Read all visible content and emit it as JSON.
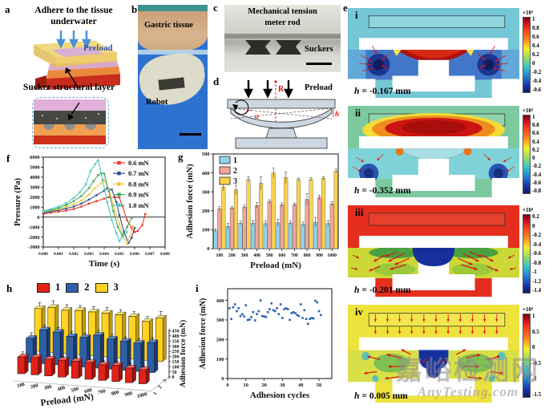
{
  "watermark": {
    "line1": "嘉峪检测网",
    "line2": "AnyTesting.com"
  },
  "panels": {
    "a": {
      "label": "a",
      "title": "Adhere to the tissue underwater",
      "preload": "Preload",
      "sucker": "Sucker structural layer"
    },
    "b": {
      "label": "b",
      "tissue": "Gastric tissue",
      "robot": "Robot"
    },
    "c": {
      "label": "c",
      "title1": "Mechanical tension",
      "title2": "meter rod",
      "suckers": "Suckers"
    },
    "d": {
      "label": "d",
      "preload": "Preload",
      "r": "R",
      "alpha": "α",
      "h": "h"
    },
    "e": {
      "label": "e",
      "subpanels": [
        {
          "id": "i",
          "h_symbol": "h",
          "h_value": "= -0.167 mm",
          "scale": "×10³",
          "ticks": [
            "1",
            "0.8",
            "0.6",
            "0.4",
            "0.2",
            "0",
            "-0.2",
            "-0.4",
            "-0.6"
          ],
          "bg": "#74c7d6"
        },
        {
          "id": "ii",
          "h_symbol": "h",
          "h_value": "= -0.352 mm",
          "scale": "×10³",
          "ticks": [
            "1",
            "0.8",
            "0.6",
            "0.4",
            "0.2",
            "0",
            "-0.2",
            "-0.4",
            "-0.6",
            "-0.8"
          ],
          "bg": "#7cc99f"
        },
        {
          "id": "iii",
          "h_symbol": "h",
          "h_value": "= -0.201 mm",
          "scale": "×10⁴",
          "ticks": [
            "0.2",
            "0",
            "-0.2",
            "-0.4",
            "-0.6",
            "-0.8",
            "-1",
            "-1.2",
            "-1.4"
          ],
          "bg": "#e62e1e"
        },
        {
          "id": "iv",
          "h_symbol": "h",
          "h_value": "= 0.005 mm",
          "scale": "×10⁴",
          "ticks": [
            "1",
            "0.5",
            "0",
            "-0.5",
            "-1",
            "-1.5"
          ],
          "bg": "#eee23c"
        }
      ]
    },
    "f": {
      "label": "f"
    },
    "g": {
      "label": "g"
    },
    "h": {
      "label": "h"
    },
    "i": {
      "label": "i"
    }
  },
  "chart_data": [
    {
      "panel": "f",
      "type": "line",
      "xlabel": "Time (s)",
      "ylabel": "Pressure (Pa)",
      "xlim": [
        0,
        0.008
      ],
      "ylim": [
        -3000,
        6000
      ],
      "xticks": [
        "0.000",
        "0.001",
        "0.002",
        "0.003",
        "0.004",
        "0.005",
        "0.006",
        "0.007",
        "0.008"
      ],
      "yticks": [
        -3000,
        -2000,
        -1000,
        0,
        1000,
        2000,
        3000,
        4000,
        5000,
        6000
      ],
      "legend_position": "top-right",
      "grid": false,
      "series": [
        {
          "name": "0.6 mN",
          "color": "#e8392f",
          "x": [
            0,
            0.0005,
            0.001,
            0.0015,
            0.002,
            0.0025,
            0.003,
            0.0035,
            0.004,
            0.0043,
            0.0047,
            0.005,
            0.0052,
            0.0055,
            0.0058,
            0.006,
            0.0062,
            0.0065,
            0.0067
          ],
          "y": [
            300,
            450,
            550,
            650,
            800,
            1050,
            1350,
            1600,
            1850,
            2000,
            2000,
            1950,
            1100,
            -300,
            -1100,
            -1500,
            -1400,
            -800,
            300
          ]
        },
        {
          "name": "0.7 mN",
          "color": "#2b4d8e",
          "x": [
            0,
            0.0005,
            0.001,
            0.0015,
            0.002,
            0.0025,
            0.003,
            0.0035,
            0.004,
            0.0042,
            0.0045,
            0.0048,
            0.005,
            0.0053,
            0.0056,
            0.0058,
            0.006
          ],
          "y": [
            400,
            550,
            700,
            850,
            1050,
            1350,
            1750,
            2200,
            2650,
            2900,
            2750,
            1500,
            200,
            -1500,
            -2600,
            -2100,
            -1100
          ]
        },
        {
          "name": "0.8 mN",
          "color": "#f5c33a",
          "x": [
            0,
            0.0005,
            0.001,
            0.0015,
            0.002,
            0.0025,
            0.003,
            0.0034,
            0.0038,
            0.004,
            0.0043,
            0.0046,
            0.005,
            0.0052,
            0.0055,
            0.0057,
            0.0059
          ],
          "y": [
            500,
            650,
            800,
            1000,
            1300,
            1650,
            2250,
            2900,
            3400,
            3700,
            2800,
            1200,
            -700,
            -1700,
            -2700,
            -1900,
            -900
          ]
        },
        {
          "name": "0.9 mN",
          "color": "#3faa5b",
          "x": [
            0,
            0.0005,
            0.001,
            0.0015,
            0.002,
            0.0025,
            0.003,
            0.0033,
            0.0036,
            0.0038,
            0.004,
            0.0043,
            0.0046,
            0.0049,
            0.0052,
            0.0055,
            0.0058
          ],
          "y": [
            550,
            700,
            900,
            1200,
            1600,
            2100,
            2900,
            3600,
            4200,
            4400,
            4350,
            2600,
            600,
            -1000,
            -1900,
            -1000,
            -100
          ]
        },
        {
          "name": "1.0 mN",
          "color": "#4fc8c0",
          "x": [
            0,
            0.0005,
            0.001,
            0.0015,
            0.002,
            0.0024,
            0.0028,
            0.0031,
            0.0034,
            0.0036,
            0.0039,
            0.0042,
            0.0045,
            0.0048,
            0.005,
            0.0052,
            0.0055
          ],
          "y": [
            600,
            800,
            1050,
            1400,
            1900,
            2500,
            3300,
            4600,
            5300,
            5700,
            3700,
            1500,
            -300,
            -1600,
            -2400,
            -2000,
            -1500
          ]
        }
      ]
    },
    {
      "panel": "g",
      "type": "bar",
      "xlabel": "Preload (mN)",
      "ylabel": "Adhesion force (mN)",
      "ylim": [
        0,
        500
      ],
      "yticks": [
        0,
        100,
        200,
        300,
        400,
        500
      ],
      "categories": [
        "100",
        "200",
        "300",
        "400",
        "500",
        "600",
        "700",
        "800",
        "900",
        "1000"
      ],
      "legend_position": "top-left",
      "series": [
        {
          "name": "1",
          "color": "#8fd3ea",
          "values": [
            95,
            118,
            135,
            135,
            133,
            137,
            135,
            128,
            140,
            133
          ],
          "errors": [
            10,
            15,
            10,
            12,
            15,
            18,
            10,
            12,
            25,
            15
          ]
        },
        {
          "name": "2",
          "color": "#f4a49b",
          "values": [
            210,
            215,
            220,
            228,
            248,
            232,
            232,
            260,
            270,
            237
          ],
          "errors": [
            12,
            8,
            10,
            15,
            10,
            10,
            8,
            30,
            12,
            10
          ]
        },
        {
          "name": "3",
          "color": "#fdd24c",
          "values": [
            325,
            310,
            365,
            345,
            400,
            375,
            365,
            365,
            372,
            410
          ],
          "errors": [
            20,
            25,
            15,
            35,
            25,
            30,
            8,
            10,
            8,
            10
          ]
        }
      ]
    },
    {
      "panel": "h",
      "type": "bar3d",
      "xlabel": "Preload (mN)",
      "zlabel": "Adhesion force (mN)",
      "zlim": [
        0,
        450
      ],
      "zticks": [
        0,
        50,
        100,
        150,
        200,
        250,
        300,
        350,
        400,
        450
      ],
      "categories": [
        "100",
        "200",
        "300",
        "400",
        "500",
        "600",
        "700",
        "800",
        "900",
        "1000"
      ],
      "depth_labels": [
        "1",
        "2",
        "3"
      ],
      "series": [
        {
          "name": "1",
          "color": "#e32119",
          "color_top": "#f2665c",
          "color_side": "#9c140e",
          "values": [
            150,
            155,
            150,
            150,
            152,
            150,
            140,
            145,
            130,
            125
          ],
          "errors": [
            20,
            15,
            15,
            12,
            15,
            12,
            15,
            12,
            15,
            12
          ]
        },
        {
          "name": "2",
          "color": "#2d5fa6",
          "color_top": "#5c8ccc",
          "color_side": "#1c3a6e",
          "values": [
            215,
            300,
            290,
            262,
            262,
            292,
            268,
            258,
            252,
            268
          ],
          "errors": [
            25,
            20,
            18,
            20,
            15,
            20,
            18,
            15,
            15,
            18
          ]
        },
        {
          "name": "3",
          "color": "#ffd321",
          "color_top": "#ffe97e",
          "color_side": "#c09a10",
          "values": [
            380,
            400,
            385,
            393,
            390,
            390,
            385,
            380,
            345,
            385
          ],
          "errors": [
            30,
            35,
            25,
            20,
            22,
            25,
            20,
            18,
            20,
            35
          ]
        }
      ]
    },
    {
      "panel": "i",
      "type": "scatter",
      "xlabel": "Adhesion cycles",
      "ylabel": "Adhesion force (mN)",
      "xlim": [
        0,
        57
      ],
      "ylim": [
        0,
        460
      ],
      "xticks": [
        0,
        10,
        20,
        30,
        40,
        50
      ],
      "yticks": [
        0,
        100,
        200,
        300,
        400
      ],
      "series": [
        {
          "name": "adhesion force",
          "color": "#2b5fb0",
          "x": [
            1,
            2,
            3,
            4,
            5,
            6,
            7,
            8,
            9,
            10,
            11,
            12,
            13,
            14,
            15,
            16,
            17,
            18,
            19,
            20,
            21,
            22,
            23,
            24,
            25,
            26,
            27,
            28,
            29,
            30,
            31,
            32,
            33,
            34,
            35,
            36,
            37,
            38,
            39,
            40,
            41,
            42,
            43,
            44,
            45,
            46,
            47,
            48,
            49,
            50,
            51
          ],
          "y": [
            360,
            305,
            365,
            380,
            345,
            360,
            320,
            330,
            318,
            375,
            300,
            302,
            315,
            340,
            298,
            330,
            345,
            400,
            320,
            318,
            315,
            340,
            355,
            385,
            350,
            345,
            360,
            330,
            380,
            310,
            355,
            360,
            355,
            300,
            335,
            340,
            335,
            325,
            320,
            380,
            310,
            350,
            305,
            280,
            305,
            310,
            308,
            398,
            390,
            345,
            325
          ]
        }
      ]
    }
  ]
}
